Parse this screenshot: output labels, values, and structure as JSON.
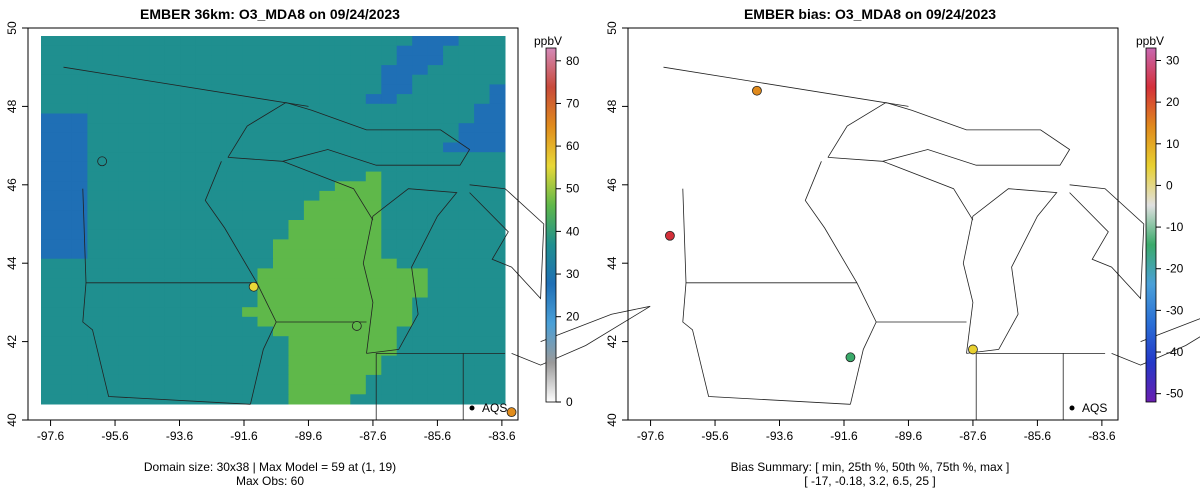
{
  "left": {
    "title": "EMBER 36km: O3_MDA8 on 09/24/2023",
    "footer_line1": "Domain size: 30x38 | Max Model = 59 at (1, 19)",
    "footer_line2": "Max Obs: 60",
    "colorbar": {
      "unit": "ppbV",
      "ticks": [
        0,
        20,
        30,
        40,
        50,
        60,
        70,
        80
      ],
      "range": [
        0,
        83
      ],
      "colors": [
        "#ffffff",
        "#9a9a9a",
        "#4aa0d8",
        "#1f6fb5",
        "#1f8f8f",
        "#5fb84a",
        "#e8d838",
        "#e08c1c",
        "#c84a3a",
        "#d48ab8"
      ]
    },
    "legend_label": "AQS",
    "stations": [
      {
        "lon": -83.3,
        "lat": 40.2,
        "value": 60
      },
      {
        "lon": -96.0,
        "lat": 46.6,
        "value": 34
      },
      {
        "lon": -91.3,
        "lat": 43.4,
        "value": 55
      },
      {
        "lon": -88.1,
        "lat": 42.4,
        "value": 44
      }
    ]
  },
  "right": {
    "title": "EMBER bias: O3_MDA8 on 09/24/2023",
    "footer_line1": "Bias Summary: [ min, 25th %, 50th %, 75th %, max ]",
    "footer_line2": "[ -17,   -0.18,   3.2,   6.5,   25 ]",
    "colorbar": {
      "unit": "ppbV",
      "ticks": [
        -50,
        -40,
        -30,
        -20,
        -10,
        0,
        10,
        20,
        30
      ],
      "range": [
        -52,
        33
      ],
      "colors": [
        "#6a1fb0",
        "#2438c8",
        "#2a6fd6",
        "#4aa0d8",
        "#3aaa6a",
        "#e0e0e0",
        "#e8d030",
        "#e08a1c",
        "#d4303a",
        "#c868b0"
      ]
    },
    "legend_label": "AQS",
    "stations": [
      {
        "lon": -94.3,
        "lat": 48.4,
        "value": 11
      },
      {
        "lon": -97.0,
        "lat": 44.7,
        "value": 20
      },
      {
        "lon": -91.4,
        "lat": 41.6,
        "value": -17
      },
      {
        "lon": -87.6,
        "lat": 41.8,
        "value": 8
      }
    ]
  },
  "axes": {
    "x_ticks": [
      "-97.6",
      "-95.6",
      "-93.6",
      "-91.6",
      "-89.6",
      "-87.6",
      "-85.6",
      "-83.6"
    ],
    "y_ticks": [
      "40",
      "42",
      "44",
      "46",
      "48",
      "50"
    ],
    "x_range": [
      -98.3,
      -83.1
    ],
    "y_range": [
      40.0,
      50.0
    ]
  }
}
